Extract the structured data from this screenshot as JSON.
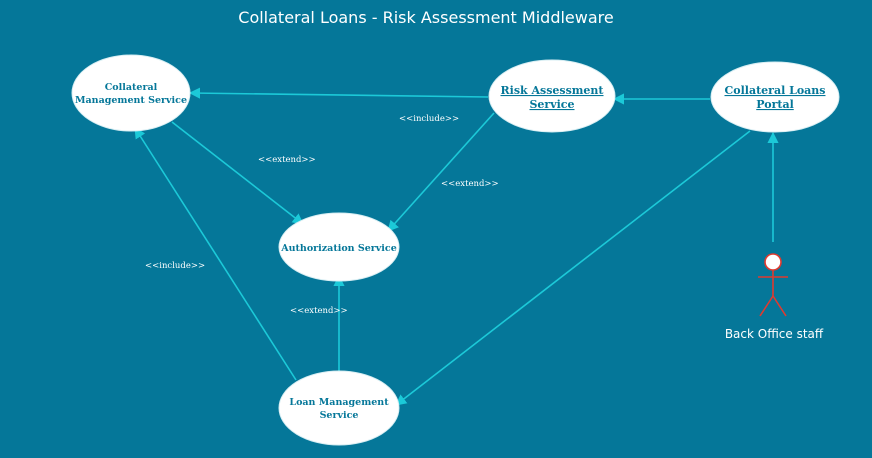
{
  "title": "Collateral Loans - Risk Assessment  Middleware",
  "nodes": {
    "collateral_management": [
      "Collateral",
      "Management Service"
    ],
    "risk_assessment": [
      "Risk Assessment",
      "Service"
    ],
    "collateral_loans_portal": [
      "Collateral Loans",
      "Portal"
    ],
    "authorization": [
      "Authorization Service"
    ],
    "loan_management": [
      "Loan Management",
      "Service"
    ]
  },
  "edges": {
    "include_risk_to_collateral": "<<include>>",
    "extend_collateral_to_auth": "<<extend>>",
    "extend_risk_to_auth": "<<extend>>",
    "include_loan_to_collateral": "<<include>>",
    "extend_loan_to_auth": "<<extend>>"
  },
  "actor": {
    "label": "Back Office staff"
  },
  "colors": {
    "background": "#057799",
    "node_fill": "#ffffff",
    "node_text": "#057799",
    "edge": "#1cc9d8",
    "actor": "#e03a2f"
  }
}
